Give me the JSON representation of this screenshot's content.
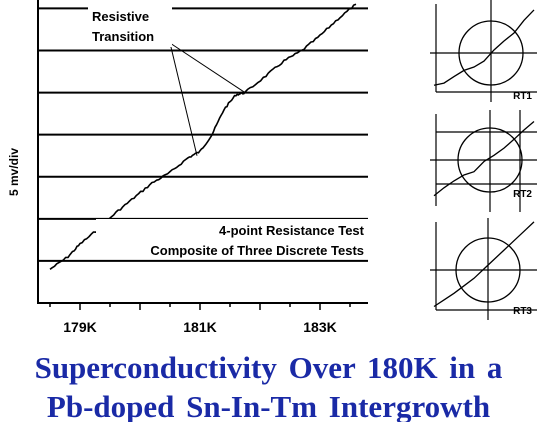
{
  "caption": {
    "line1": "Superconductivity Over 180K in a",
    "line2": "Pb-doped Sn-In-Tm Intergrowth"
  },
  "colors": {
    "caption": "#1a2aa6",
    "ink": "#000000",
    "background": "#ffffff"
  },
  "chart_data": [
    {
      "type": "line",
      "ylabel": "5 mv/div",
      "xlabel": "",
      "x_ticks": [
        179,
        181,
        183
      ],
      "x_tick_labels": [
        "179K",
        "181K",
        "183K"
      ],
      "xlim": [
        178.3,
        183.8
      ],
      "ylim": [
        0,
        7.2
      ],
      "grid": "horizontal",
      "annotations": [
        {
          "text": [
            "Resistive",
            "Transition"
          ],
          "arrows_to": [
            {
              "x": 180.95,
              "y": 3.5
            },
            {
              "x": 181.75,
              "y": 5.0
            }
          ]
        },
        {
          "text": [
            "4-point Resistance Test",
            "Composite of Three Discrete Tests"
          ]
        }
      ],
      "series": [
        {
          "x": [
            178.5,
            178.8,
            179.0,
            179.3,
            179.6,
            179.9,
            180.2,
            180.5,
            180.8,
            181.0,
            181.2,
            181.4,
            181.6,
            181.75,
            182.1,
            182.4,
            182.7,
            183.0,
            183.3,
            183.6
          ],
          "y": [
            0.8,
            1.1,
            1.4,
            1.75,
            2.15,
            2.5,
            2.85,
            3.1,
            3.45,
            3.6,
            4.0,
            4.6,
            4.95,
            5.0,
            5.4,
            5.75,
            6.0,
            6.35,
            6.75,
            7.1
          ]
        }
      ]
    },
    {
      "type": "line",
      "label": "RT1",
      "axes": "crosshair",
      "circle": true,
      "series": [
        {
          "x": [
            0,
            0.1,
            0.2,
            0.3,
            0.4,
            0.5,
            0.6,
            0.7,
            0.8,
            0.9,
            1.0
          ],
          "y": [
            0.12,
            0.15,
            0.2,
            0.26,
            0.3,
            0.38,
            0.48,
            0.58,
            0.68,
            0.8,
            0.92
          ]
        }
      ]
    },
    {
      "type": "line",
      "label": "RT2",
      "axes": "grid",
      "circle": true,
      "series": [
        {
          "x": [
            0,
            0.1,
            0.2,
            0.3,
            0.4,
            0.5,
            0.6,
            0.7,
            0.8,
            0.9,
            1.0
          ],
          "y": [
            0.12,
            0.18,
            0.26,
            0.32,
            0.38,
            0.46,
            0.55,
            0.62,
            0.72,
            0.8,
            0.9
          ]
        }
      ]
    },
    {
      "type": "line",
      "label": "RT3",
      "axes": "crosshair",
      "circle": true,
      "series": [
        {
          "x": [
            0,
            0.1,
            0.2,
            0.3,
            0.4,
            0.5,
            0.6,
            0.7,
            0.8,
            0.9,
            1.0
          ],
          "y": [
            0.08,
            0.15,
            0.22,
            0.3,
            0.38,
            0.48,
            0.58,
            0.68,
            0.78,
            0.88,
            0.98
          ]
        }
      ]
    }
  ]
}
